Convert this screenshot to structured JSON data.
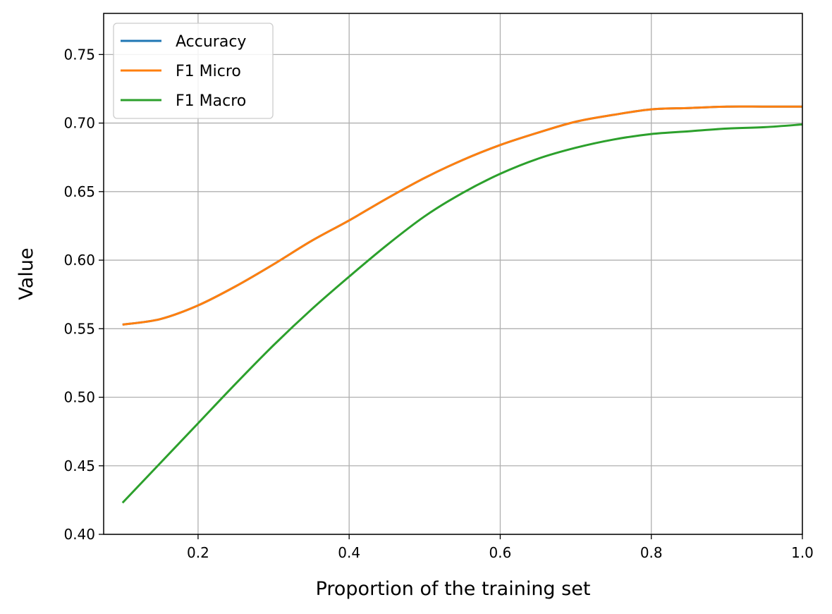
{
  "chart_data": {
    "type": "line",
    "xlabel": "Proportion of the training set",
    "ylabel": "Value",
    "xlim": [
      0.075,
      1.0
    ],
    "ylim": [
      0.4,
      0.78
    ],
    "xticks": [
      0.2,
      0.4,
      0.6,
      0.8,
      1.0
    ],
    "xtick_labels": [
      "0.2",
      "0.4",
      "0.6",
      "0.8",
      "1.0"
    ],
    "yticks": [
      0.4,
      0.45,
      0.5,
      0.55,
      0.6,
      0.65,
      0.7,
      0.75
    ],
    "ytick_labels": [
      "0.40",
      "0.45",
      "0.50",
      "0.55",
      "0.60",
      "0.65",
      "0.70",
      "0.75"
    ],
    "grid": true,
    "legend_position": "top-left",
    "x": [
      0.1,
      0.15,
      0.2,
      0.25,
      0.3,
      0.35,
      0.4,
      0.45,
      0.5,
      0.55,
      0.6,
      0.65,
      0.7,
      0.75,
      0.8,
      0.85,
      0.9,
      0.95,
      1.0
    ],
    "series": [
      {
        "name": "Accuracy",
        "color": "#1f77b4",
        "values": [
          0.553,
          0.557,
          0.567,
          0.581,
          0.597,
          0.614,
          0.629,
          0.645,
          0.66,
          0.673,
          0.684,
          0.693,
          0.701,
          0.706,
          0.71,
          0.711,
          0.712,
          0.712,
          0.712
        ]
      },
      {
        "name": "F1 Micro",
        "color": "#ff7f0e",
        "values": [
          0.553,
          0.557,
          0.567,
          0.581,
          0.597,
          0.614,
          0.629,
          0.645,
          0.66,
          0.673,
          0.684,
          0.693,
          0.701,
          0.706,
          0.71,
          0.711,
          0.712,
          0.712,
          0.712
        ]
      },
      {
        "name": "F1 Macro",
        "color": "#2ca02c",
        "values": [
          0.423,
          0.452,
          0.481,
          0.51,
          0.538,
          0.564,
          0.588,
          0.611,
          0.632,
          0.649,
          0.663,
          0.674,
          0.682,
          0.688,
          0.692,
          0.694,
          0.696,
          0.697,
          0.699
        ]
      }
    ]
  }
}
